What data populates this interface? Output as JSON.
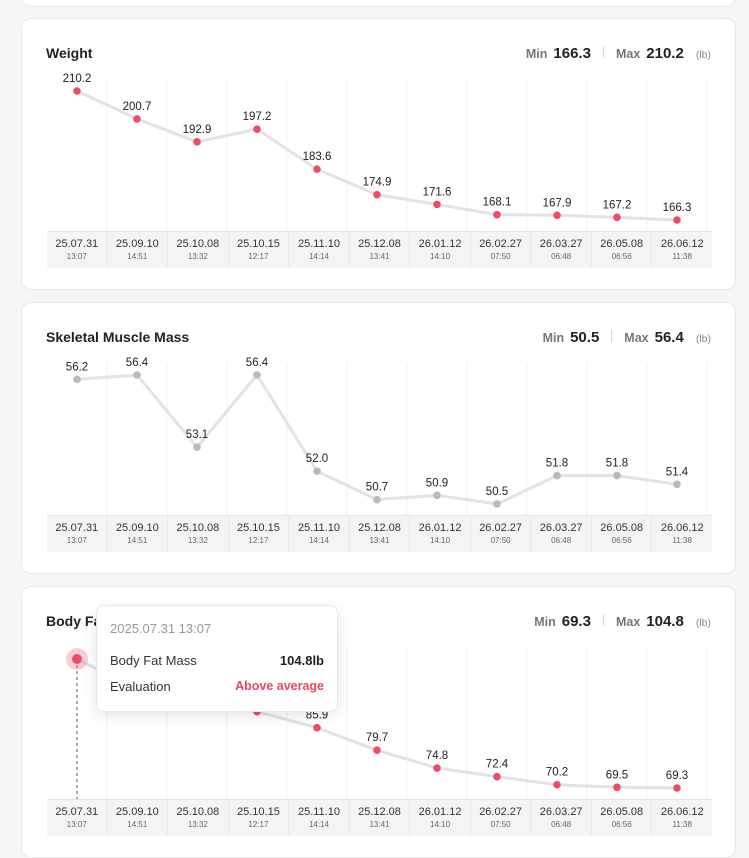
{
  "dates": [
    {
      "date": "25.07.31",
      "time": "13:07"
    },
    {
      "date": "25.09.10",
      "time": "14:51"
    },
    {
      "date": "25.10.08",
      "time": "13:32"
    },
    {
      "date": "25.10.15",
      "time": "12:17"
    },
    {
      "date": "25.11.10",
      "time": "14:14"
    },
    {
      "date": "25.12.08",
      "time": "13:41"
    },
    {
      "date": "26.01.12",
      "time": "14:10"
    },
    {
      "date": "26.02.27",
      "time": "07:50"
    },
    {
      "date": "26.03.27",
      "time": "06:48"
    },
    {
      "date": "26.05.08",
      "time": "06:56"
    },
    {
      "date": "26.06.12",
      "time": "11:38"
    }
  ],
  "colors": {
    "accent": "#ee4d6a",
    "neutral": "#b9b9c1",
    "line": "#e2e2e8"
  },
  "chart_data": [
    {
      "type": "line",
      "title": "Weight",
      "min_label": "Min",
      "min_value": "166.3",
      "max_label": "Max",
      "max_value": "210.2",
      "unit": "(lb)",
      "categories": [
        "25.07.31",
        "25.09.10",
        "25.10.08",
        "25.10.15",
        "25.11.10",
        "25.12.08",
        "26.01.12",
        "26.02.27",
        "26.03.27",
        "26.05.08",
        "26.06.12"
      ],
      "values": [
        210.2,
        200.7,
        192.9,
        197.2,
        183.6,
        174.9,
        171.6,
        168.1,
        167.9,
        167.2,
        166.3
      ],
      "labels": [
        "210.2",
        "200.7",
        "192.9",
        "197.2",
        "183.6",
        "174.9",
        "171.6",
        "168.1",
        "167.9",
        "167.2",
        "166.3"
      ],
      "ylim": [
        166.3,
        210.2
      ],
      "point_color": "accent"
    },
    {
      "type": "line",
      "title": "Skeletal Muscle Mass",
      "min_label": "Min",
      "min_value": "50.5",
      "max_label": "Max",
      "max_value": "56.4",
      "unit": "(lb)",
      "categories": [
        "25.07.31",
        "25.09.10",
        "25.10.08",
        "25.10.15",
        "25.11.10",
        "25.12.08",
        "26.01.12",
        "26.02.27",
        "26.03.27",
        "26.05.08",
        "26.06.12"
      ],
      "values": [
        56.2,
        56.4,
        53.1,
        56.4,
        52.0,
        50.7,
        50.9,
        50.5,
        51.8,
        51.8,
        51.4
      ],
      "labels": [
        "56.2",
        "56.4",
        "53.1",
        "56.4",
        "52.0",
        "50.7",
        "50.9",
        "50.5",
        "51.8",
        "51.8",
        "51.4"
      ],
      "ylim": [
        50.5,
        56.4
      ],
      "point_color": "neutral"
    },
    {
      "type": "line",
      "title": "Body Fat Mass",
      "title_visible": "Body Fa",
      "min_label": "Min",
      "min_value": "69.3",
      "max_label": "Max",
      "max_value": "104.8",
      "unit": "(lb)",
      "categories": [
        "25.07.31",
        "25.09.10",
        "25.10.08",
        "25.10.15",
        "25.11.10",
        "25.12.08",
        "26.01.12",
        "26.02.27",
        "26.03.27",
        "26.05.08",
        "26.06.12"
      ],
      "values": [
        104.8,
        96.5,
        93.0,
        90.3,
        85.9,
        79.7,
        74.8,
        72.4,
        70.2,
        69.5,
        69.3
      ],
      "labels": [
        null,
        null,
        null,
        null,
        "85.9",
        "79.7",
        "74.8",
        "72.4",
        "70.2",
        "69.5",
        "69.3"
      ],
      "ylim": [
        69.3,
        104.8
      ],
      "point_color": "accent",
      "selected_index": 0
    }
  ],
  "tooltip": {
    "datetime": "2025.07.31 13:07",
    "metric_label": "Body Fat Mass",
    "metric_value": "104.8lb",
    "eval_label": "Evaluation",
    "eval_value": "Above average"
  }
}
